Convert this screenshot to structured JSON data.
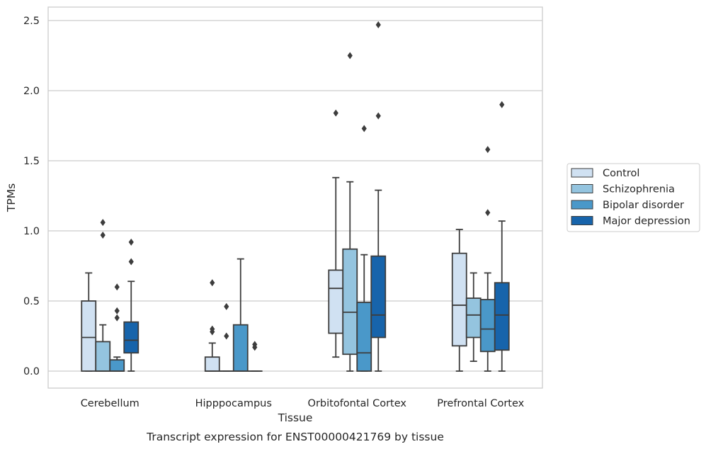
{
  "chart_data": {
    "type": "box",
    "xlabel": "Tissue",
    "ylabel": "TPMs",
    "caption": "Transcript expression for ENST00000421769 by tissue",
    "ylim": [
      -0.12,
      2.6
    ],
    "yticks": [
      "0.0",
      "0.5",
      "1.0",
      "1.5",
      "2.0",
      "2.5"
    ],
    "grid": true,
    "legend_position": "right",
    "categories": [
      "Cerebellum",
      "Hipppocampus",
      "Orbitofontal Cortex",
      "Prefrontal Cortex"
    ],
    "series": [
      {
        "name": "Control",
        "color": "#d0e1f2",
        "boxes": [
          {
            "whislo": 0.0,
            "q1": 0.0,
            "median": 0.24,
            "q3": 0.5,
            "whishi": 0.7,
            "fliers": []
          },
          {
            "whislo": 0.0,
            "q1": 0.0,
            "median": 0.0,
            "q3": 0.1,
            "whishi": 0.2,
            "fliers": [
              0.28,
              0.3,
              0.63
            ]
          },
          {
            "whislo": 0.1,
            "q1": 0.27,
            "median": 0.59,
            "q3": 0.72,
            "whishi": 1.38,
            "fliers": [
              1.84
            ]
          },
          {
            "whislo": 0.0,
            "q1": 0.18,
            "median": 0.47,
            "q3": 0.84,
            "whishi": 1.01,
            "fliers": []
          }
        ]
      },
      {
        "name": "Schizophrenia",
        "color": "#94c4df",
        "boxes": [
          {
            "whislo": 0.0,
            "q1": 0.0,
            "median": 0.0,
            "q3": 0.21,
            "whishi": 0.33,
            "fliers": [
              0.97,
              1.06
            ]
          },
          {
            "whislo": 0.0,
            "q1": 0.0,
            "median": 0.0,
            "q3": 0.0,
            "whishi": 0.0,
            "fliers": [
              0.25,
              0.46
            ]
          },
          {
            "whislo": 0.0,
            "q1": 0.12,
            "median": 0.42,
            "q3": 0.87,
            "whishi": 1.35,
            "fliers": [
              2.25
            ]
          },
          {
            "whislo": 0.07,
            "q1": 0.24,
            "median": 0.4,
            "q3": 0.52,
            "whishi": 0.7,
            "fliers": []
          }
        ]
      },
      {
        "name": "Bipolar disorder",
        "color": "#4a98c9",
        "boxes": [
          {
            "whislo": 0.0,
            "q1": 0.0,
            "median": 0.0,
            "q3": 0.08,
            "whishi": 0.1,
            "fliers": [
              0.38,
              0.43,
              0.6
            ]
          },
          {
            "whislo": 0.0,
            "q1": 0.0,
            "median": 0.0,
            "q3": 0.33,
            "whishi": 0.8,
            "fliers": []
          },
          {
            "whislo": 0.0,
            "q1": 0.0,
            "median": 0.13,
            "q3": 0.49,
            "whishi": 0.83,
            "fliers": [
              1.73
            ]
          },
          {
            "whislo": 0.0,
            "q1": 0.14,
            "median": 0.3,
            "q3": 0.51,
            "whishi": 0.7,
            "fliers": [
              1.13,
              1.58
            ]
          }
        ]
      },
      {
        "name": "Major depression",
        "color": "#1764ab",
        "boxes": [
          {
            "whislo": 0.0,
            "q1": 0.13,
            "median": 0.22,
            "q3": 0.35,
            "whishi": 0.64,
            "fliers": [
              0.78,
              0.92
            ]
          },
          {
            "whislo": 0.0,
            "q1": 0.0,
            "median": 0.0,
            "q3": 0.0,
            "whishi": 0.0,
            "fliers": [
              0.17,
              0.19
            ]
          },
          {
            "whislo": 0.0,
            "q1": 0.24,
            "median": 0.4,
            "q3": 0.82,
            "whishi": 1.29,
            "fliers": [
              1.82,
              2.47
            ]
          },
          {
            "whislo": 0.0,
            "q1": 0.15,
            "median": 0.4,
            "q3": 0.63,
            "whishi": 1.07,
            "fliers": [
              1.9
            ]
          }
        ]
      }
    ]
  }
}
